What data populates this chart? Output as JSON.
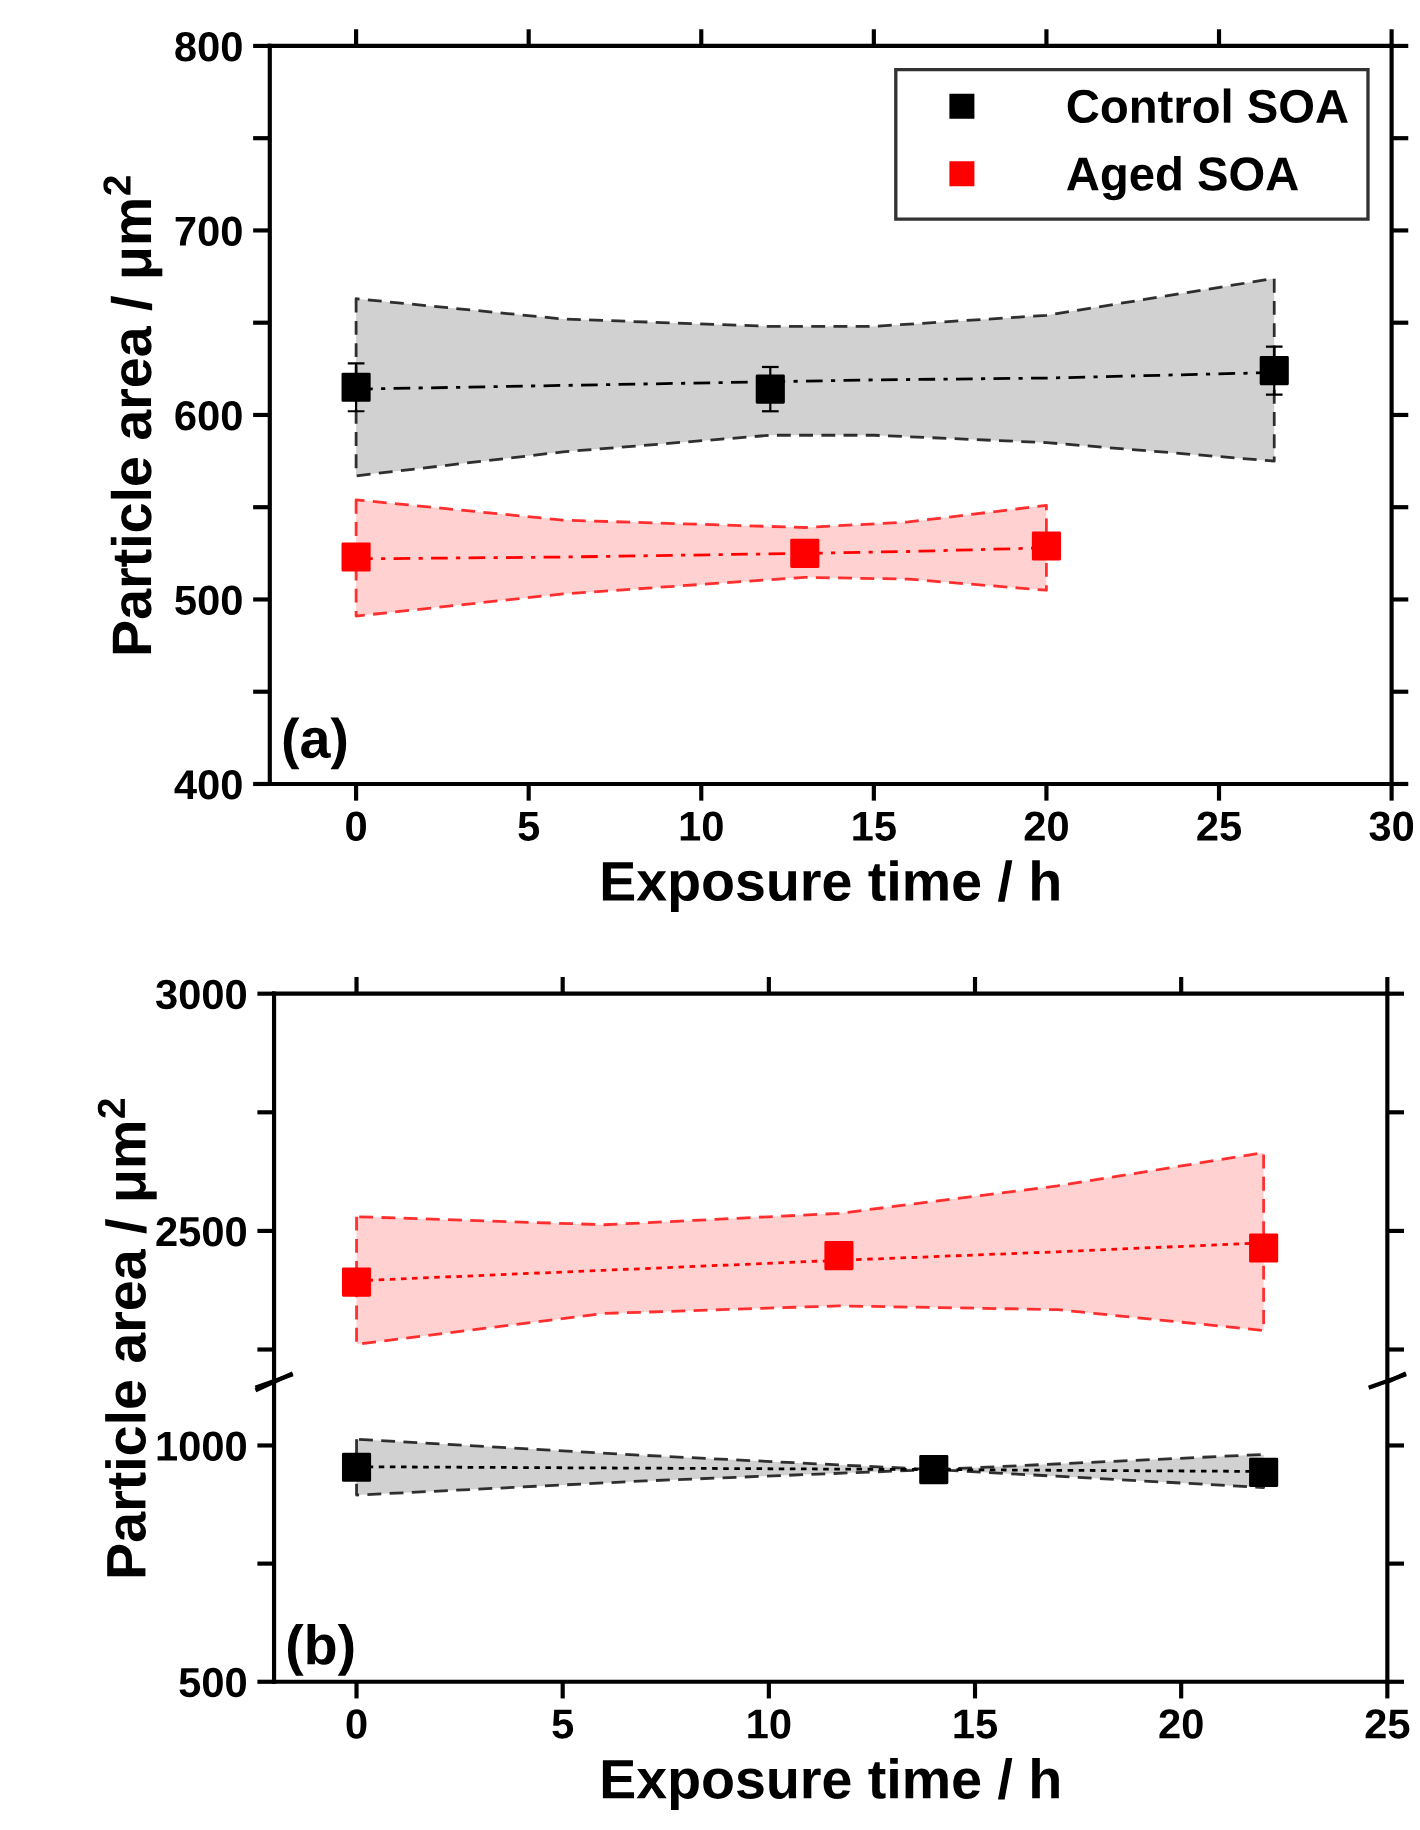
{
  "chart_data": [
    {
      "type": "scatter",
      "xlabel": "Exposure time / h",
      "ylabel": "Particle area / μm$^{2}$",
      "annotations": [
        "(a)"
      ],
      "xlim": [
        -2.5,
        30
      ],
      "xticks": [
        0,
        5,
        10,
        15,
        20,
        25,
        30
      ],
      "ylim": [
        400,
        800
      ],
      "yticks": [
        400,
        {
          "value": 450,
          "label": null
        },
        500,
        {
          "value": 550,
          "label": null
        },
        600,
        {
          "value": 650,
          "label": null
        },
        700,
        {
          "value": 750,
          "label": null
        },
        800
      ],
      "legend": "top right",
      "marker": "square",
      "grid": false,
      "series": [
        {
          "type": "line",
          "marker": "none",
          "color": "#000000",
          "line_style": "dashed",
          "x": [
            0,
            6,
            12,
            15,
            20,
            26.6
          ],
          "values": [
            614,
            616,
            618,
            619,
            620,
            623
          ],
          "lower": [
            567,
            580,
            589,
            589,
            585,
            575
          ],
          "upper": [
            663,
            652,
            648,
            648,
            654,
            674
          ]
        },
        {
          "type": "line",
          "marker": "none",
          "color": "#ff0000",
          "line_style": "dashed",
          "x": [
            0,
            6,
            13,
            16,
            20
          ],
          "values": [
            522,
            523,
            525,
            526,
            528
          ],
          "lower": [
            491,
            503,
            512,
            511,
            505
          ],
          "upper": [
            554,
            543,
            539,
            542,
            551
          ]
        },
        {
          "name": "Control SOA",
          "color": "#000000",
          "x": [
            0,
            12,
            26.6
          ],
          "values": [
            615,
            614,
            624
          ],
          "errors": [
            13,
            12,
            13
          ]
        },
        {
          "name": "Aged SOA",
          "color": "#ff0000",
          "x": [
            0,
            13,
            20
          ],
          "values": [
            523,
            525,
            529
          ]
        }
      ]
    },
    {
      "type": "scatter",
      "ylabel": "Particle area / μm$^{2}$",
      "xlim": [
        -2,
        25
      ],
      "xticks": [
        0,
        5,
        10,
        15,
        20,
        25
      ],
      "ylim": [
        2190,
        3000
      ],
      "yticks": [
        {
          "value": 2250,
          "label": null
        },
        2500,
        {
          "value": 2750,
          "label": null
        },
        3000
      ],
      "tick_labels": "y",
      "marker": "square",
      "grid": false,
      "series": [
        {
          "type": "line",
          "marker": "none",
          "color": "#ff0000",
          "line_style": "dotted",
          "x": [
            0,
            6,
            11.7,
            17,
            22
          ],
          "values": [
            2395,
            2417,
            2438,
            2456,
            2475
          ],
          "lower": [
            2261,
            2326,
            2342,
            2334,
            2290
          ],
          "upper": [
            2530,
            2513,
            2537,
            2595,
            2665
          ]
        },
        {
          "color": "#ff0000",
          "x": [
            0,
            11.7,
            22
          ],
          "values": [
            2392,
            2448,
            2464
          ]
        }
      ]
    },
    {
      "type": "scatter",
      "xlabel": "Exposure time / h",
      "annotations": [
        "(b)"
      ],
      "xlim": [
        -2,
        25
      ],
      "xticks": [
        0,
        5,
        10,
        15,
        20,
        25
      ],
      "ylim": [
        500,
        1130
      ],
      "yticks": [
        500,
        {
          "value": 750,
          "label": null
        },
        1000
      ],
      "marker": "square",
      "grid": false,
      "series": [
        {
          "type": "line",
          "marker": "none",
          "color": "#000000",
          "line_style": "dotted",
          "x": [
            0,
            7,
            14,
            22
          ],
          "values": [
            955,
            952,
            949,
            945
          ],
          "lower": [
            895,
            925,
            949,
            911
          ],
          "upper": [
            1013,
            979,
            949,
            981
          ]
        },
        {
          "color": "#000000",
          "x": [
            0,
            14,
            22
          ],
          "values": [
            954,
            949,
            943
          ]
        }
      ]
    }
  ]
}
